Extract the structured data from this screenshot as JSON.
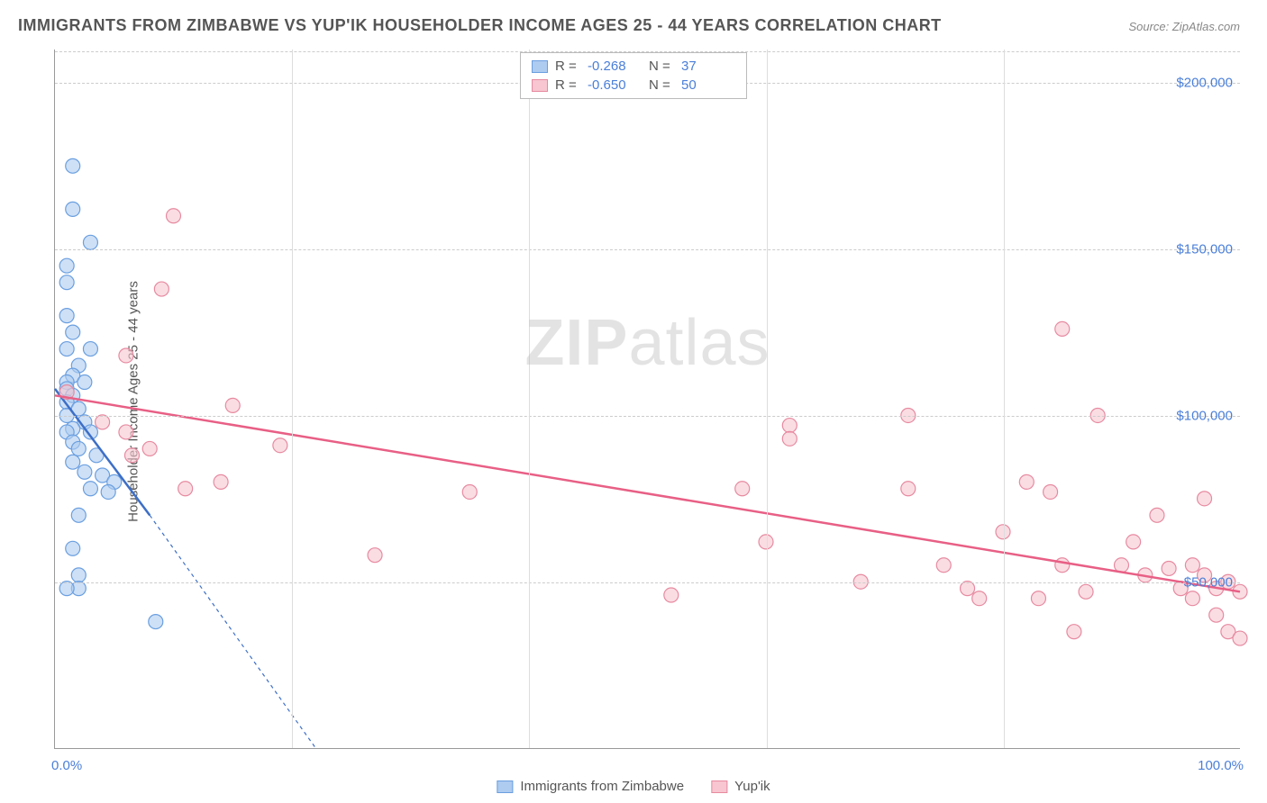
{
  "title": "IMMIGRANTS FROM ZIMBABWE VS YUP'IK HOUSEHOLDER INCOME AGES 25 - 44 YEARS CORRELATION CHART",
  "source": "Source: ZipAtlas.com",
  "watermark_bold": "ZIP",
  "watermark_light": "atlas",
  "chart": {
    "type": "scatter",
    "background_color": "#ffffff",
    "grid_color": "#cccccc",
    "axis_color": "#999999",
    "tick_color": "#4a7fd8",
    "tick_fontsize": 15,
    "title_fontsize": 18,
    "ylabel": "Householder Income Ages 25 - 44 years",
    "xlim": [
      0,
      100
    ],
    "ylim": [
      0,
      210000
    ],
    "yticks": [
      {
        "v": 50000,
        "label": "$50,000"
      },
      {
        "v": 100000,
        "label": "$100,000"
      },
      {
        "v": 150000,
        "label": "$150,000"
      },
      {
        "v": 200000,
        "label": "$200,000"
      }
    ],
    "xticks": [
      {
        "v": 0,
        "label": "0.0%"
      },
      {
        "v": 100,
        "label": "100.0%"
      }
    ],
    "xgrid": [
      20,
      40,
      60,
      80
    ],
    "marker_radius": 8,
    "marker_stroke_width": 1.2,
    "trend_line_width": 2.5,
    "series": [
      {
        "name": "Immigrants from Zimbabwe",
        "fill": "#aecbf0",
        "stroke": "#6a9fe0",
        "line_color": "#3d6fc7",
        "line_dash_ext": "4 4",
        "R": "-0.268",
        "N": "37",
        "trend": {
          "x1": 0,
          "y1": 108000,
          "x2_solid": 8,
          "y2_solid": 70000,
          "x2_dash": 22,
          "y2_dash": 0
        },
        "points": [
          [
            1.5,
            175000
          ],
          [
            1.5,
            162000
          ],
          [
            3.0,
            152000
          ],
          [
            1.0,
            145000
          ],
          [
            1.0,
            140000
          ],
          [
            1.0,
            130000
          ],
          [
            1.5,
            125000
          ],
          [
            3.0,
            120000
          ],
          [
            1.0,
            120000
          ],
          [
            2.0,
            115000
          ],
          [
            1.5,
            112000
          ],
          [
            1.0,
            110000
          ],
          [
            2.5,
            110000
          ],
          [
            1.0,
            108000
          ],
          [
            1.5,
            106000
          ],
          [
            1.0,
            104000
          ],
          [
            2.0,
            102000
          ],
          [
            1.0,
            100000
          ],
          [
            2.5,
            98000
          ],
          [
            1.5,
            96000
          ],
          [
            1.0,
            95000
          ],
          [
            3.0,
            95000
          ],
          [
            1.5,
            92000
          ],
          [
            2.0,
            90000
          ],
          [
            3.5,
            88000
          ],
          [
            1.5,
            86000
          ],
          [
            2.5,
            83000
          ],
          [
            4.0,
            82000
          ],
          [
            5.0,
            80000
          ],
          [
            3.0,
            78000
          ],
          [
            4.5,
            77000
          ],
          [
            2.0,
            70000
          ],
          [
            1.5,
            60000
          ],
          [
            2.0,
            52000
          ],
          [
            2.0,
            48000
          ],
          [
            1.0,
            48000
          ],
          [
            8.5,
            38000
          ]
        ]
      },
      {
        "name": "Yup'ik",
        "fill": "#f7c6d0",
        "stroke": "#e78aa0",
        "line_color": "#e85f85",
        "R": "-0.650",
        "N": "50",
        "trend": {
          "x1": 0,
          "y1": 106000,
          "x2_solid": 100,
          "y2_solid": 47000
        },
        "points": [
          [
            10,
            160000
          ],
          [
            9,
            138000
          ],
          [
            6,
            118000
          ],
          [
            1,
            107000
          ],
          [
            4,
            98000
          ],
          [
            6,
            95000
          ],
          [
            8,
            90000
          ],
          [
            6.5,
            88000
          ],
          [
            15,
            103000
          ],
          [
            19,
            91000
          ],
          [
            14,
            80000
          ],
          [
            11,
            78000
          ],
          [
            35,
            77000
          ],
          [
            27,
            58000
          ],
          [
            52,
            46000
          ],
          [
            62,
            97000
          ],
          [
            62,
            93000
          ],
          [
            58,
            78000
          ],
          [
            60,
            62000
          ],
          [
            72,
            78000
          ],
          [
            68,
            50000
          ],
          [
            72,
            100000
          ],
          [
            75,
            55000
          ],
          [
            77,
            48000
          ],
          [
            78,
            45000
          ],
          [
            80,
            65000
          ],
          [
            82,
            80000
          ],
          [
            84,
            77000
          ],
          [
            85,
            126000
          ],
          [
            85,
            55000
          ],
          [
            87,
            47000
          ],
          [
            88,
            100000
          ],
          [
            86,
            35000
          ],
          [
            90,
            55000
          ],
          [
            92,
            52000
          ],
          [
            91,
            62000
          ],
          [
            93,
            70000
          ],
          [
            94,
            54000
          ],
          [
            95,
            48000
          ],
          [
            96,
            45000
          ],
          [
            96,
            55000
          ],
          [
            97,
            52000
          ],
          [
            97,
            75000
          ],
          [
            98,
            48000
          ],
          [
            98,
            40000
          ],
          [
            99,
            50000
          ],
          [
            99,
            35000
          ],
          [
            100,
            47000
          ],
          [
            100,
            33000
          ],
          [
            83,
            45000
          ]
        ]
      }
    ]
  }
}
